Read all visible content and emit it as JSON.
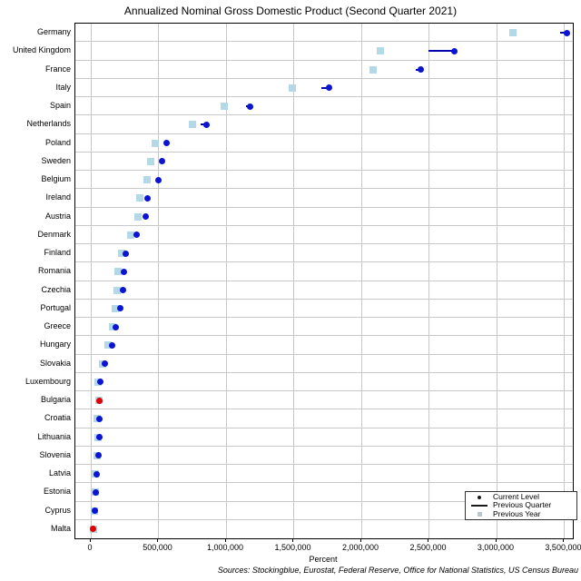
{
  "header": {
    "title": "Annualized Nominal Gross Domestic Product (Second Quarter 2021)"
  },
  "axis": {
    "xlabel": "Percent"
  },
  "footer": {
    "sources": "Sources: Stockingblue, Eurostat, Federal Reserve, Office for National Statistics, US Census Bureau"
  },
  "legend": {
    "items": [
      {
        "label": "Current Level",
        "marker": "dot"
      },
      {
        "label": "Previous Quarter",
        "marker": "line"
      },
      {
        "label": "Previous Year",
        "marker": "square"
      }
    ]
  },
  "colors": {
    "current_level": "#0a14d2",
    "current_level_declined": "#e10000",
    "previous_quarter_line": "#0000b0",
    "previous_year_square": "#b3d9e8",
    "gridline": "#c9c9c9",
    "plot_border": "#000000"
  },
  "chart_data": {
    "type": "scatter",
    "title": "Annualized Nominal Gross Domestic Product (Second Quarter 2021)",
    "xlabel": "Percent",
    "grid": "vertical-only",
    "legend_position": "bottom-right",
    "xlim": [
      -114000,
      3564000
    ],
    "x_ticks": [
      {
        "value": 0,
        "label": "0"
      },
      {
        "value": 500000,
        "label": "500,000"
      },
      {
        "value": 1000000,
        "label": "1,000,000"
      },
      {
        "value": 1500000,
        "label": "1,500,000"
      },
      {
        "value": 2000000,
        "label": "2,000,000"
      },
      {
        "value": 2500000,
        "label": "2,500,000"
      },
      {
        "value": 3000000,
        "label": "3,000,000"
      },
      {
        "value": 3500000,
        "label": "3,500,000"
      }
    ],
    "series": [
      {
        "country": "Germany",
        "current": 3520000,
        "previous_quarter": 3470000,
        "previous_year": 3120000,
        "declined": false
      },
      {
        "country": "United Kingdom",
        "current": 2690000,
        "previous_quarter": 2500000,
        "previous_year": 2140000,
        "declined": false
      },
      {
        "country": "France",
        "current": 2440000,
        "previous_quarter": 2400000,
        "previous_year": 2090000,
        "declined": false
      },
      {
        "country": "Italy",
        "current": 1765000,
        "previous_quarter": 1705000,
        "previous_year": 1490000,
        "declined": false
      },
      {
        "country": "Spain",
        "current": 1175000,
        "previous_quarter": 1150000,
        "previous_year": 985000,
        "declined": false
      },
      {
        "country": "Netherlands",
        "current": 855000,
        "previous_quarter": 815000,
        "previous_year": 750000,
        "declined": false
      },
      {
        "country": "Poland",
        "current": 560000,
        "previous_quarter": 545000,
        "previous_year": 478000,
        "declined": false
      },
      {
        "country": "Sweden",
        "current": 525000,
        "previous_quarter": 512000,
        "previous_year": 445000,
        "declined": false
      },
      {
        "country": "Belgium",
        "current": 503000,
        "previous_quarter": 492000,
        "previous_year": 413000,
        "declined": false
      },
      {
        "country": "Ireland",
        "current": 420000,
        "previous_quarter": 410000,
        "previous_year": 362000,
        "declined": false
      },
      {
        "country": "Austria",
        "current": 409000,
        "previous_quarter": 400000,
        "previous_year": 352000,
        "declined": false
      },
      {
        "country": "Denmark",
        "current": 342000,
        "previous_quarter": 334000,
        "previous_year": 296000,
        "declined": false
      },
      {
        "country": "Finland",
        "current": 256000,
        "previous_quarter": 250000,
        "previous_year": 227000,
        "declined": false
      },
      {
        "country": "Romania",
        "current": 244000,
        "previous_quarter": 237000,
        "previous_year": 204000,
        "declined": false
      },
      {
        "country": "Czechia",
        "current": 240000,
        "previous_quarter": 232000,
        "previous_year": 197000,
        "declined": false
      },
      {
        "country": "Portugal",
        "current": 215000,
        "previous_quarter": 208000,
        "previous_year": 181000,
        "declined": false
      },
      {
        "country": "Greece",
        "current": 186000,
        "previous_quarter": 179000,
        "previous_year": 159000,
        "declined": false
      },
      {
        "country": "Hungary",
        "current": 156000,
        "previous_quarter": 150000,
        "previous_year": 129000,
        "declined": false
      },
      {
        "country": "Slovakia",
        "current": 102000,
        "previous_quarter": 98000,
        "previous_year": 85000,
        "declined": false
      },
      {
        "country": "Luxembourg",
        "current": 73000,
        "previous_quarter": 70000,
        "previous_year": 51000,
        "declined": false
      },
      {
        "country": "Bulgaria",
        "current": 66000,
        "previous_quarter": 68000,
        "previous_year": 60000,
        "declined": true
      },
      {
        "country": "Croatia",
        "current": 65000,
        "previous_quarter": 62000,
        "previous_year": 45000,
        "declined": false
      },
      {
        "country": "Lithuania",
        "current": 62000,
        "previous_quarter": 60000,
        "previous_year": 51000,
        "declined": false
      },
      {
        "country": "Slovenia",
        "current": 55000,
        "previous_quarter": 53000,
        "previous_year": 48000,
        "declined": false
      },
      {
        "country": "Latvia",
        "current": 42000,
        "previous_quarter": 41000,
        "previous_year": 35000,
        "declined": false
      },
      {
        "country": "Estonia",
        "current": 35000,
        "previous_quarter": 34000,
        "previous_year": 31000,
        "declined": false
      },
      {
        "country": "Cyprus",
        "current": 31000,
        "previous_quarter": 30000,
        "previous_year": 26000,
        "declined": false
      },
      {
        "country": "Malta",
        "current": 20000,
        "previous_quarter": 22000,
        "previous_year": 17000,
        "declined": true
      }
    ]
  }
}
